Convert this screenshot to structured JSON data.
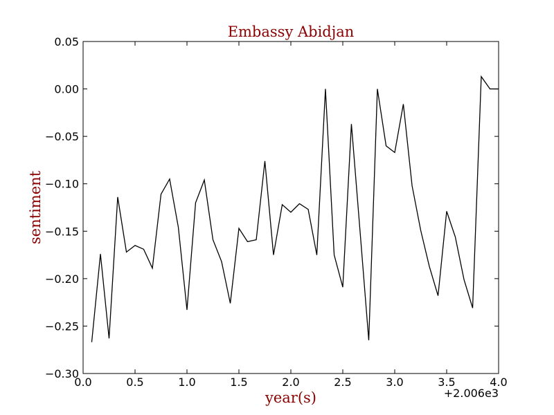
{
  "chart_data": {
    "type": "line",
    "title": "Embassy Abidjan",
    "xlabel": "year(s)",
    "ylabel": "sentiment",
    "x_offset_label": "+2.006e3",
    "xlim": [
      0.0,
      4.0
    ],
    "ylim": [
      -0.3,
      0.05
    ],
    "grid": false,
    "xticks": [
      0.0,
      0.5,
      1.0,
      1.5,
      2.0,
      2.5,
      3.0,
      3.5,
      4.0
    ],
    "xtick_labels": [
      "0.0",
      "0.5",
      "1.0",
      "1.5",
      "2.0",
      "2.5",
      "3.0",
      "3.5",
      "4.0"
    ],
    "yticks": [
      -0.3,
      -0.25,
      -0.2,
      -0.15,
      -0.1,
      -0.05,
      0.0,
      0.05
    ],
    "ytick_labels": [
      "−0.30",
      "−0.25",
      "−0.20",
      "−0.15",
      "−0.10",
      "−0.05",
      "0.00",
      "0.05"
    ],
    "series": [
      {
        "x": [
          0.083,
          0.167,
          0.25,
          0.333,
          0.417,
          0.5,
          0.583,
          0.667,
          0.75,
          0.833,
          0.917,
          1.0,
          1.083,
          1.167,
          1.25,
          1.333,
          1.417,
          1.5,
          1.583,
          1.667,
          1.75,
          1.833,
          1.917,
          2.0,
          2.083,
          2.167,
          2.25,
          2.333,
          2.417,
          2.5,
          2.583,
          2.667,
          2.75,
          2.833,
          2.917,
          3.0,
          3.083,
          3.167,
          3.25,
          3.333,
          3.417,
          3.5,
          3.583,
          3.667,
          3.75,
          3.833,
          3.917,
          4.0
        ],
        "y": [
          -0.267,
          -0.174,
          -0.263,
          -0.114,
          -0.172,
          -0.165,
          -0.169,
          -0.189,
          -0.111,
          -0.095,
          -0.146,
          -0.233,
          -0.12,
          -0.096,
          -0.159,
          -0.182,
          -0.226,
          -0.147,
          -0.161,
          -0.159,
          -0.076,
          -0.175,
          -0.122,
          -0.13,
          -0.121,
          -0.127,
          -0.175,
          0.0,
          -0.175,
          -0.209,
          -0.037,
          -0.151,
          -0.265,
          0.0,
          -0.06,
          -0.067,
          -0.016,
          -0.102,
          -0.149,
          -0.187,
          -0.218,
          -0.129,
          -0.156,
          -0.201,
          -0.231,
          0.013,
          0.0,
          0.0
        ]
      }
    ],
    "colors": {
      "line": "#000000",
      "text_accent": "#8b0000",
      "axes": "#000000",
      "background": "#ffffff"
    }
  }
}
